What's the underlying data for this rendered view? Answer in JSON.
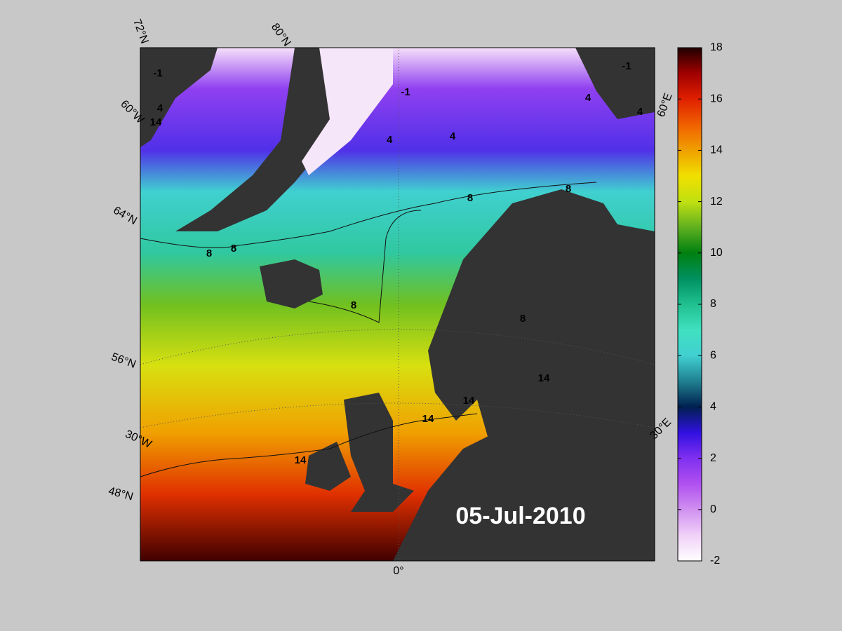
{
  "map": {
    "date": "05-Jul-2010",
    "graticule_labels": [
      "72°N",
      "80°N",
      "60°W",
      "64°N",
      "56°N",
      "30°W",
      "48°N",
      "0°",
      "60°E",
      "30°E"
    ],
    "contour_labels": [
      -1,
      -1,
      -1,
      4,
      4,
      4,
      4,
      4,
      8,
      8,
      8,
      8,
      8,
      8,
      14,
      14,
      14,
      14,
      14
    ]
  },
  "colorbar": {
    "lim": [
      -2,
      18
    ],
    "ticks": [
      -2,
      0,
      2,
      4,
      6,
      8,
      10,
      12,
      14,
      16,
      18
    ],
    "colormap": [
      "#ffffff",
      "#f0d0f8",
      "#d090f0",
      "#b050f0",
      "#8030f0",
      "#3010e0",
      "#002050",
      "#208090",
      "#40d0d0",
      "#40e0c0",
      "#20c090",
      "#009060",
      "#008010",
      "#60b020",
      "#c0e010",
      "#f0e000",
      "#f0a000",
      "#f06000",
      "#e02000",
      "#a00000",
      "#200000"
    ]
  }
}
